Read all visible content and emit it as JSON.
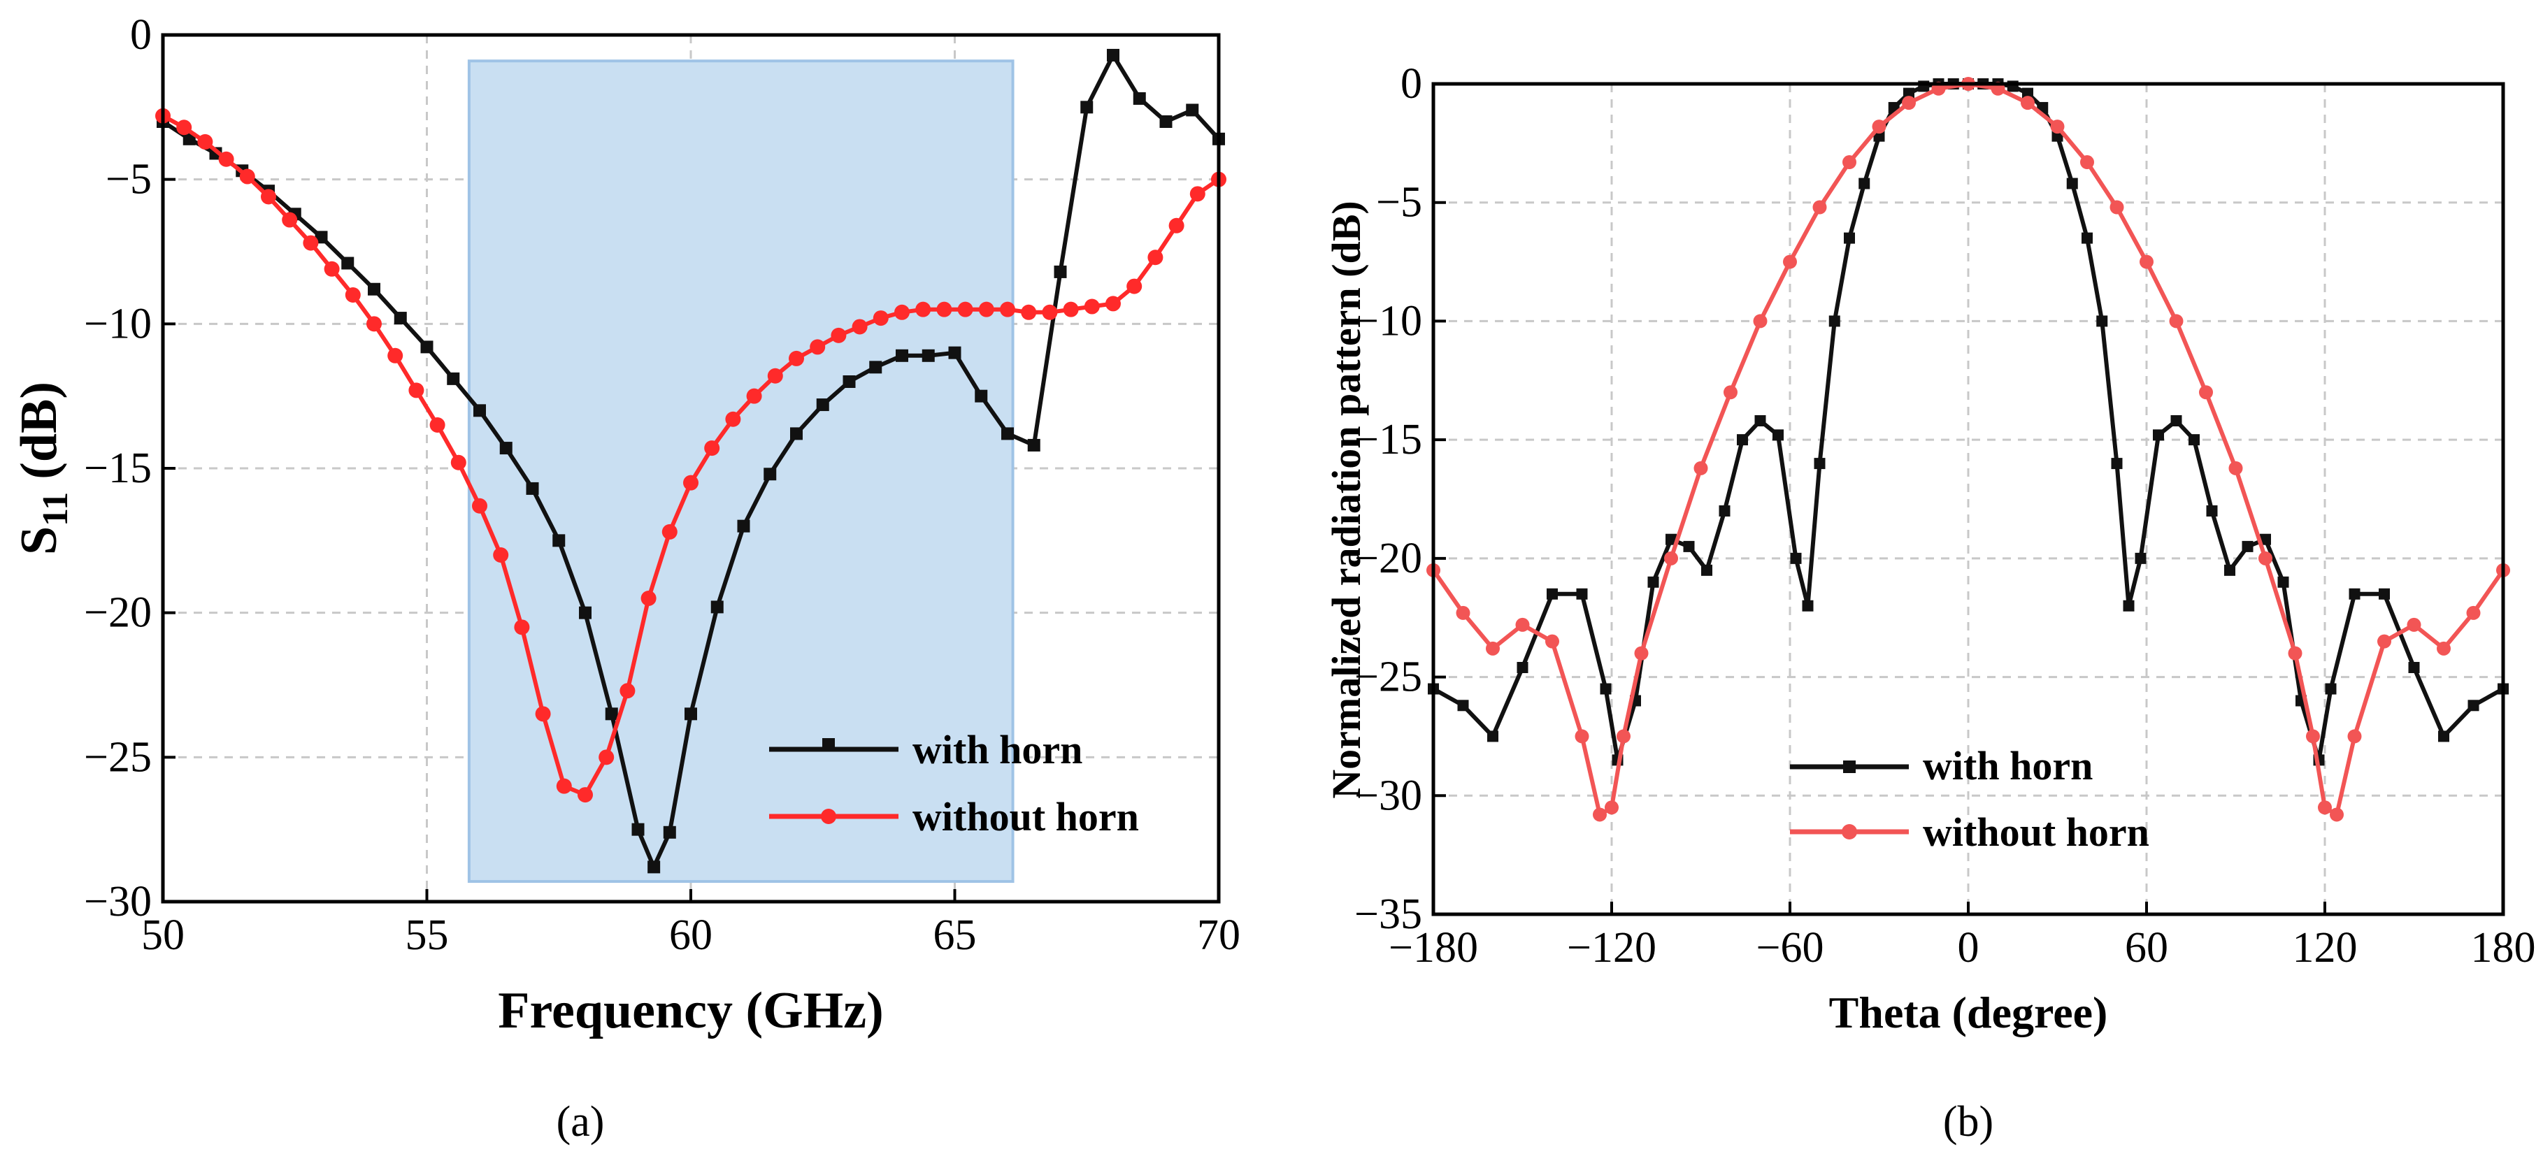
{
  "colors": {
    "with_horn": "#111111",
    "without_horn": "#ff2a2a",
    "without_horn_b": "#f25555",
    "band_fill": "#c9dff2",
    "band_stroke": "#9fc3e6",
    "grid": "#c8c8c8"
  },
  "chart_data": [
    {
      "type": "line",
      "id": "a",
      "caption": "(a)",
      "xlabel": "Frequency (GHz)",
      "ylabel_main": "S",
      "ylabel_sub": "11",
      "ylabel_unit": "(dB)",
      "xlim": [
        50,
        70
      ],
      "ylim": [
        -30,
        0
      ],
      "xticks": [
        50,
        55,
        60,
        65,
        70
      ],
      "yticks": [
        0,
        -5,
        -10,
        -15,
        -20,
        -25,
        -30
      ],
      "xtick_labels": [
        "50",
        "55",
        "60",
        "65",
        "70"
      ],
      "ytick_labels": [
        "0",
        "−5",
        "−10",
        "−15",
        "−20",
        "−25",
        "−30"
      ],
      "grid": true,
      "shaded_band": {
        "x0": 55.8,
        "x1": 66.1,
        "y0": -29.3,
        "y1": -0.9
      },
      "legend_position": "bottom-right",
      "series": [
        {
          "name": "with horn",
          "marker": "square",
          "x": [
            50,
            50.5,
            51,
            51.5,
            52,
            52.5,
            53,
            53.5,
            54,
            54.5,
            55,
            55.5,
            56,
            56.5,
            57,
            57.5,
            58,
            58.5,
            59,
            59.3,
            59.6,
            60,
            60.5,
            61,
            61.5,
            62,
            62.5,
            63,
            63.5,
            64,
            64.5,
            65,
            65.5,
            66,
            66.5,
            67,
            67.5,
            68,
            68.5,
            69,
            69.5,
            70
          ],
          "y": [
            -3.0,
            -3.6,
            -4.1,
            -4.7,
            -5.4,
            -6.2,
            -7.0,
            -7.9,
            -8.8,
            -9.8,
            -10.8,
            -11.9,
            -13.0,
            -14.3,
            -15.7,
            -17.5,
            -20.0,
            -23.5,
            -27.5,
            -28.8,
            -27.6,
            -23.5,
            -19.8,
            -17.0,
            -15.2,
            -13.8,
            -12.8,
            -12.0,
            -11.5,
            -11.1,
            -11.1,
            -11.0,
            -12.5,
            -13.8,
            -14.2,
            -8.2,
            -2.5,
            -0.7,
            -2.2,
            -3.0,
            -2.6,
            -3.6
          ]
        },
        {
          "name": "without horn",
          "marker": "circle",
          "x": [
            50,
            50.4,
            50.8,
            51.2,
            51.6,
            52,
            52.4,
            52.8,
            53.2,
            53.6,
            54,
            54.4,
            54.8,
            55.2,
            55.6,
            56,
            56.4,
            56.8,
            57.2,
            57.6,
            58,
            58.4,
            58.8,
            59.2,
            59.6,
            60,
            60.4,
            60.8,
            61.2,
            61.6,
            62,
            62.4,
            62.8,
            63.2,
            63.6,
            64,
            64.4,
            64.8,
            65.2,
            65.6,
            66,
            66.4,
            66.8,
            67.2,
            67.6,
            68,
            68.4,
            68.8,
            69.2,
            69.6,
            70
          ],
          "y": [
            -2.8,
            -3.2,
            -3.7,
            -4.3,
            -4.9,
            -5.6,
            -6.4,
            -7.2,
            -8.1,
            -9.0,
            -10.0,
            -11.1,
            -12.3,
            -13.5,
            -14.8,
            -16.3,
            -18.0,
            -20.5,
            -23.5,
            -26.0,
            -26.3,
            -25.0,
            -22.7,
            -19.5,
            -17.2,
            -15.5,
            -14.3,
            -13.3,
            -12.5,
            -11.8,
            -11.2,
            -10.8,
            -10.4,
            -10.1,
            -9.8,
            -9.6,
            -9.5,
            -9.5,
            -9.5,
            -9.5,
            -9.5,
            -9.6,
            -9.6,
            -9.5,
            -9.4,
            -9.3,
            -8.7,
            -7.7,
            -6.6,
            -5.5,
            -5.0
          ]
        }
      ]
    },
    {
      "type": "line",
      "id": "b",
      "caption": "(b)",
      "xlabel": "Theta (degree)",
      "ylabel": "Normalized radiation pattern (dB)",
      "xlim": [
        -180,
        180
      ],
      "ylim": [
        -35,
        0
      ],
      "xticks": [
        -180,
        -120,
        -60,
        0,
        60,
        120,
        180
      ],
      "yticks": [
        0,
        -5,
        -10,
        -15,
        -20,
        -25,
        -30,
        -35
      ],
      "xtick_labels": [
        "−180",
        "−120",
        "−60",
        "0",
        "60",
        "120",
        "180"
      ],
      "ytick_labels": [
        "0",
        "−5",
        "−10",
        "−15",
        "−20",
        "−25",
        "−30",
        "−35"
      ],
      "grid": true,
      "legend_position": "bottom-center",
      "series": [
        {
          "name": "with horn",
          "marker": "square",
          "x": [
            -180,
            -170,
            -160,
            -150,
            -140,
            -130,
            -122,
            -118,
            -112,
            -106,
            -100,
            -94,
            -88,
            -82,
            -76,
            -70,
            -64,
            -58,
            -54,
            -50,
            -45,
            -40,
            -35,
            -30,
            -25,
            -20,
            -15,
            -10,
            -5,
            0,
            5,
            10,
            15,
            20,
            25,
            30,
            35,
            40,
            45,
            50,
            54,
            58,
            64,
            70,
            76,
            82,
            88,
            94,
            100,
            106,
            112,
            118,
            122,
            130,
            140,
            150,
            160,
            170,
            180
          ],
          "y": [
            -25.5,
            -26.2,
            -27.5,
            -24.6,
            -21.5,
            -21.5,
            -25.5,
            -28.5,
            -26.0,
            -21.0,
            -19.2,
            -19.5,
            -20.5,
            -18.0,
            -15.0,
            -14.2,
            -14.8,
            -20.0,
            -22.0,
            -16.0,
            -10.0,
            -6.5,
            -4.2,
            -2.2,
            -1.0,
            -0.4,
            -0.1,
            0,
            0,
            0,
            0,
            0,
            -0.1,
            -0.4,
            -1.0,
            -2.2,
            -4.2,
            -6.5,
            -10.0,
            -16.0,
            -22.0,
            -20.0,
            -14.8,
            -14.2,
            -15.0,
            -18.0,
            -20.5,
            -19.5,
            -19.2,
            -21.0,
            -26.0,
            -28.5,
            -25.5,
            -21.5,
            -21.5,
            -24.6,
            -27.5,
            -26.2,
            -25.5
          ]
        },
        {
          "name": "without horn",
          "marker": "circle",
          "x": [
            -180,
            -170,
            -160,
            -150,
            -140,
            -130,
            -124,
            -120,
            -116,
            -110,
            -100,
            -90,
            -80,
            -70,
            -60,
            -50,
            -40,
            -30,
            -20,
            -10,
            0,
            10,
            20,
            30,
            40,
            50,
            60,
            70,
            80,
            90,
            100,
            110,
            116,
            120,
            124,
            130,
            140,
            150,
            160,
            170,
            180
          ],
          "y": [
            -20.5,
            -22.3,
            -23.8,
            -22.8,
            -23.5,
            -27.5,
            -30.8,
            -30.5,
            -27.5,
            -24.0,
            -20.0,
            -16.2,
            -13.0,
            -10.0,
            -7.5,
            -5.2,
            -3.3,
            -1.8,
            -0.8,
            -0.2,
            0,
            -0.2,
            -0.8,
            -1.8,
            -3.3,
            -5.2,
            -7.5,
            -10.0,
            -13.0,
            -16.2,
            -20.0,
            -24.0,
            -27.5,
            -30.5,
            -30.8,
            -27.5,
            -23.5,
            -22.8,
            -23.8,
            -22.3,
            -20.5
          ]
        }
      ]
    }
  ]
}
